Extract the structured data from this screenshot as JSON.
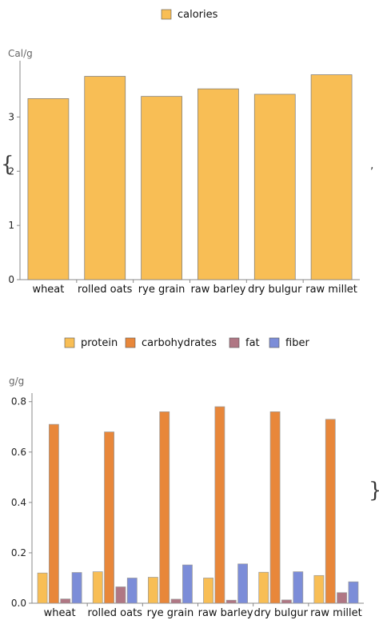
{
  "chart_data": [
    {
      "type": "bar",
      "ylabel": "Cal/g",
      "ylim": [
        0,
        3.95
      ],
      "yticks": [
        0,
        1,
        2,
        3
      ],
      "categories": [
        "wheat",
        "rolled oats",
        "rye grain",
        "raw barley",
        "dry bulgur",
        "raw millet"
      ],
      "series": [
        {
          "name": "calories",
          "color": "#F8BE55",
          "values": [
            3.34,
            3.75,
            3.38,
            3.52,
            3.42,
            3.78
          ]
        }
      ],
      "legend": "top-center",
      "grid": false
    },
    {
      "type": "bar",
      "ylabel": "g/g",
      "ylim": [
        0,
        0.815
      ],
      "yticks": [
        "0.0",
        "0.2",
        "0.4",
        "0.6",
        "0.8"
      ],
      "categories": [
        "wheat",
        "rolled oats",
        "rye grain",
        "raw barley",
        "dry bulgur",
        "raw millet"
      ],
      "series": [
        {
          "name": "protein",
          "color": "#F8BE55",
          "values": [
            0.12,
            0.125,
            0.103,
            0.1,
            0.123,
            0.11
          ]
        },
        {
          "name": "carbohydrates",
          "color": "#E8873A",
          "values": [
            0.71,
            0.68,
            0.76,
            0.78,
            0.76,
            0.73
          ]
        },
        {
          "name": "fat",
          "color": "#B07784",
          "values": [
            0.017,
            0.065,
            0.016,
            0.012,
            0.013,
            0.042
          ]
        },
        {
          "name": "fiber",
          "color": "#7C8DD8",
          "values": [
            0.122,
            0.1,
            0.152,
            0.156,
            0.125,
            0.085
          ]
        }
      ],
      "legend": "top-center",
      "grid": false
    }
  ],
  "decorations": {
    "open_brace": "{",
    "comma": ",",
    "close_brace": "}"
  }
}
